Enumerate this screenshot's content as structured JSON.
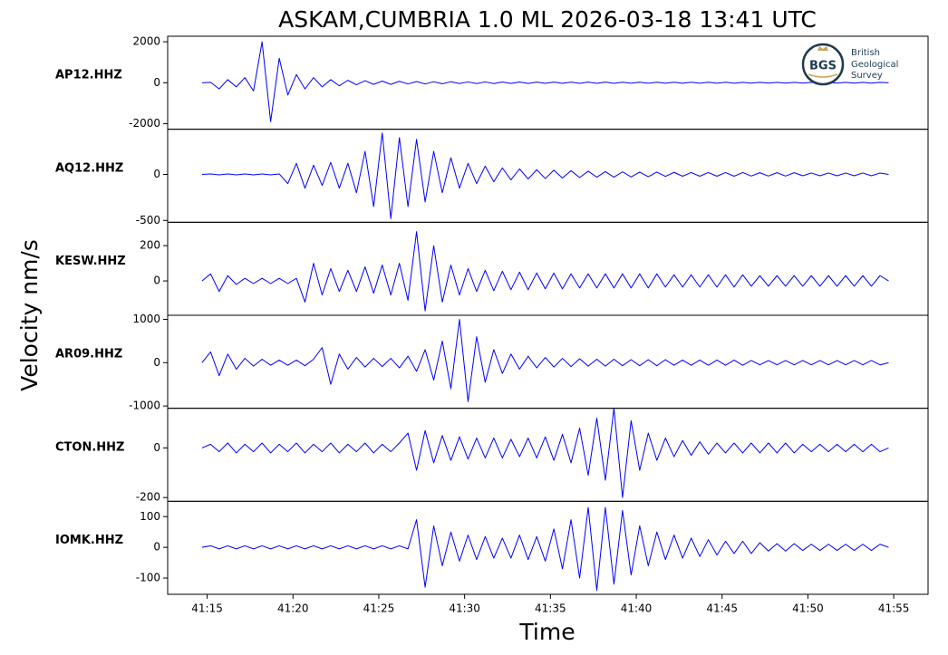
{
  "chart_data": {
    "type": "line",
    "title": "ASKAM,CUMBRIA 1.0 ML   2026-03-18 13:41 UTC",
    "xlabel": "Time",
    "ylabel": "Velocity nm/s",
    "xlim": [
      12.7,
      57.0
    ],
    "xticks": [
      {
        "value": 15,
        "label": "41:15"
      },
      {
        "value": 20,
        "label": "41:20"
      },
      {
        "value": 25,
        "label": "41:25"
      },
      {
        "value": 30,
        "label": "41:30"
      },
      {
        "value": 35,
        "label": "41:35"
      },
      {
        "value": 40,
        "label": "41:40"
      },
      {
        "value": 45,
        "label": "41:45"
      },
      {
        "value": 50,
        "label": "41:50"
      },
      {
        "value": 55,
        "label": "41:55"
      }
    ],
    "x": [
      14.7,
      15.2,
      15.7,
      16.2,
      16.7,
      17.2,
      17.7,
      18.2,
      18.7,
      19.2,
      19.7,
      20.2,
      20.7,
      21.2,
      21.7,
      22.2,
      22.7,
      23.2,
      23.7,
      24.2,
      24.7,
      25.2,
      25.7,
      26.2,
      26.7,
      27.2,
      27.7,
      28.2,
      28.7,
      29.2,
      29.7,
      30.2,
      30.7,
      31.2,
      31.7,
      32.2,
      32.7,
      33.2,
      33.7,
      34.2,
      34.7,
      35.2,
      35.7,
      36.2,
      36.7,
      37.2,
      37.7,
      38.2,
      38.7,
      39.2,
      39.7,
      40.2,
      40.7,
      41.2,
      41.7,
      42.2,
      42.7,
      43.2,
      43.7,
      44.2,
      44.7,
      45.2,
      45.7,
      46.2,
      46.7,
      47.2,
      47.7,
      48.2,
      48.7,
      49.2,
      49.7,
      50.2,
      50.7,
      51.2,
      51.7,
      52.2,
      52.7,
      53.2,
      53.7,
      54.2,
      54.7
    ],
    "series": [
      {
        "name": "AP12.HHZ",
        "color": "#0000ff",
        "ylim": [
          -2270,
          2270
        ],
        "yticks": [
          -2000,
          0,
          2000
        ],
        "values": [
          0,
          20,
          -300,
          150,
          -200,
          250,
          -400,
          2000,
          -1900,
          1200,
          -600,
          400,
          -300,
          250,
          -200,
          150,
          -150,
          120,
          -100,
          100,
          -80,
          80,
          -80,
          70,
          -60,
          60,
          -60,
          50,
          -50,
          50,
          -40,
          40,
          -40,
          40,
          -40,
          35,
          -35,
          35,
          -35,
          30,
          -30,
          30,
          -30,
          30,
          -30,
          30,
          -30,
          30,
          -30,
          25,
          -25,
          25,
          -25,
          25,
          -25,
          25,
          -25,
          25,
          -25,
          25,
          -25,
          25,
          -25,
          20,
          -20,
          20,
          -20,
          20,
          -20,
          20,
          -20,
          20,
          -20,
          20,
          -20,
          20,
          -20,
          20,
          -20,
          20,
          0
        ]
      },
      {
        "name": "AQ12.HHZ",
        "color": "#0000ff",
        "ylim": [
          -520,
          490
        ],
        "yticks": [
          -500,
          0
        ],
        "values": [
          0,
          5,
          -5,
          5,
          -5,
          5,
          -5,
          5,
          -5,
          5,
          -100,
          120,
          -150,
          100,
          -120,
          130,
          -150,
          120,
          -200,
          250,
          -350,
          450,
          -480,
          400,
          -350,
          380,
          -300,
          250,
          -200,
          180,
          -150,
          120,
          -100,
          90,
          -80,
          70,
          -60,
          60,
          -50,
          50,
          -45,
          45,
          -40,
          40,
          -35,
          35,
          -30,
          30,
          -30,
          28,
          -28,
          25,
          -25,
          25,
          -22,
          22,
          -20,
          20,
          -20,
          20,
          -20,
          20,
          -20,
          20,
          -18,
          18,
          -18,
          18,
          -18,
          18,
          -15,
          15,
          -15,
          15,
          -15,
          15,
          -15,
          15,
          -15,
          15,
          0
        ]
      },
      {
        "name": "KESW.HHZ",
        "color": "#0000ff",
        "ylim": [
          -195,
          333
        ],
        "yticks": [
          0,
          200
        ],
        "values": [
          0,
          40,
          -60,
          30,
          -20,
          15,
          -15,
          15,
          -15,
          15,
          -15,
          15,
          -120,
          100,
          -80,
          70,
          -60,
          60,
          -60,
          80,
          -70,
          90,
          -80,
          100,
          -110,
          280,
          -170,
          200,
          -120,
          90,
          -80,
          70,
          -60,
          60,
          -55,
          55,
          -50,
          50,
          -50,
          45,
          -45,
          45,
          -45,
          40,
          -40,
          40,
          -40,
          40,
          -40,
          40,
          -40,
          40,
          -40,
          40,
          -35,
          35,
          -35,
          35,
          -35,
          35,
          -35,
          35,
          -35,
          35,
          -30,
          30,
          -30,
          30,
          -30,
          30,
          -30,
          30,
          -30,
          30,
          -30,
          30,
          -30,
          30,
          -30,
          30,
          0
        ]
      },
      {
        "name": "AR09.HHZ",
        "color": "#0000ff",
        "ylim": [
          -1053,
          1095
        ],
        "yticks": [
          -1000,
          0,
          1000
        ],
        "values": [
          0,
          250,
          -300,
          200,
          -150,
          100,
          -80,
          80,
          -60,
          60,
          -60,
          60,
          -70,
          80,
          350,
          -500,
          200,
          -150,
          120,
          -100,
          100,
          -90,
          100,
          -120,
          150,
          -200,
          300,
          -400,
          500,
          -600,
          1000,
          -900,
          600,
          -450,
          300,
          -250,
          200,
          -150,
          150,
          -120,
          120,
          -100,
          100,
          -90,
          90,
          -80,
          80,
          -80,
          80,
          -70,
          70,
          -70,
          70,
          -70,
          70,
          -60,
          60,
          -60,
          60,
          -60,
          60,
          -60,
          60,
          -60,
          50,
          -50,
          50,
          -50,
          50,
          -50,
          50,
          -50,
          50,
          -50,
          50,
          -50,
          50,
          -50,
          50,
          -50,
          0
        ]
      },
      {
        "name": "CTON.HHZ",
        "color": "#0000ff",
        "ylim": [
          -215,
          160
        ],
        "yticks": [
          -200,
          0
        ],
        "values": [
          0,
          15,
          -15,
          20,
          -20,
          15,
          -15,
          20,
          -20,
          15,
          -15,
          20,
          -20,
          15,
          -15,
          20,
          -20,
          15,
          -15,
          20,
          -20,
          15,
          -15,
          20,
          60,
          -90,
          70,
          -60,
          50,
          -50,
          45,
          -45,
          40,
          -40,
          40,
          -40,
          35,
          -35,
          40,
          -40,
          45,
          -50,
          55,
          -60,
          80,
          -110,
          120,
          -130,
          160,
          -200,
          110,
          -90,
          60,
          -50,
          40,
          -35,
          30,
          -30,
          25,
          -25,
          20,
          -20,
          20,
          -20,
          20,
          -20,
          20,
          -20,
          20,
          -20,
          15,
          -15,
          15,
          -15,
          15,
          -15,
          15,
          -15,
          15,
          -15,
          0
        ]
      },
      {
        "name": "IOMK.HHZ",
        "color": "#0000ff",
        "ylim": [
          -153,
          150
        ],
        "yticks": [
          -100,
          0,
          100
        ],
        "values": [
          0,
          5,
          -5,
          5,
          -5,
          5,
          -5,
          5,
          -5,
          5,
          -5,
          5,
          -5,
          5,
          -5,
          5,
          -5,
          5,
          -5,
          5,
          -5,
          5,
          -5,
          5,
          -5,
          90,
          -130,
          70,
          -60,
          50,
          -45,
          40,
          -40,
          35,
          -35,
          30,
          -35,
          40,
          -40,
          35,
          -45,
          60,
          -70,
          90,
          -100,
          130,
          -140,
          130,
          -120,
          120,
          -90,
          70,
          -60,
          50,
          -40,
          40,
          -35,
          30,
          -30,
          25,
          -25,
          20,
          -20,
          20,
          -20,
          15,
          -12,
          12,
          -12,
          12,
          -10,
          10,
          -10,
          10,
          -10,
          10,
          -10,
          10,
          -10,
          10,
          0
        ]
      }
    ]
  },
  "logo": {
    "abbr": "BGS",
    "lines": [
      "British",
      "Geological",
      "Survey"
    ]
  }
}
